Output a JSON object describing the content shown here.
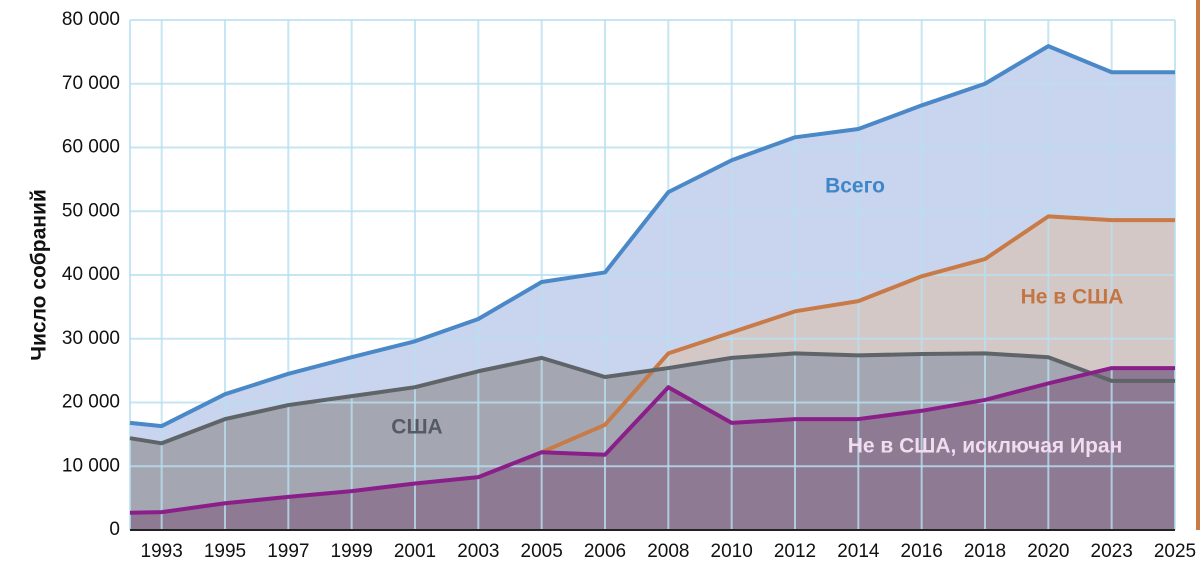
{
  "chart_data": {
    "type": "line",
    "y_label": "Число собраний",
    "categories": [
      null,
      "1993",
      "1995",
      "1997",
      "1999",
      "2001",
      "2003",
      "2005",
      "2006",
      "2008",
      "2010",
      "2012",
      "2014",
      "2016",
      "2018",
      "2020",
      "2023",
      "2025"
    ],
    "series": [
      {
        "name": "Всего",
        "color": "#4a88c7",
        "fill": "#c9d4ee",
        "label_color": "#3f86c9",
        "values": [
          16800,
          16300,
          21300,
          24500,
          27100,
          29600,
          33100,
          38900,
          40400,
          53000,
          58000,
          61600,
          62900,
          66600,
          70000,
          75900,
          71800,
          71800
        ]
      },
      {
        "name": "Не в США",
        "color": "#c87a47",
        "fill": "#d4c8c6",
        "label_color": "#c27643",
        "values": [
          null,
          null,
          null,
          null,
          null,
          null,
          null,
          12200,
          16500,
          27700,
          31000,
          34300,
          35900,
          39800,
          42500,
          49200,
          48600,
          48600
        ]
      },
      {
        "name": "США",
        "color": "#5f6468",
        "fill": "#a4a7b1",
        "label_color": "#555b63",
        "values": [
          14400,
          13600,
          17400,
          19600,
          21000,
          22400,
          24900,
          27000,
          24000,
          25400,
          27000,
          27700,
          27400,
          27600,
          27700,
          27100,
          23400,
          23400
        ]
      },
      {
        "name": "Не в США, исключая Иран",
        "color": "#8a1f8a",
        "fill": "#8e7b93",
        "label_color": "#f2dcef",
        "values": [
          2700,
          2800,
          4200,
          5200,
          6100,
          7300,
          8300,
          12200,
          11800,
          22400,
          16800,
          17400,
          17400,
          18700,
          20400,
          23000,
          25400,
          25400
        ]
      }
    ],
    "ylim": [
      0,
      80000
    ],
    "yticks": [
      0,
      {
        "value": 10000,
        "label": "10 000"
      },
      {
        "value": 20000,
        "label": "20 000"
      },
      {
        "value": 30000,
        "label": "30 000"
      },
      {
        "value": 40000,
        "label": "40 000"
      },
      {
        "value": 50000,
        "label": "50 000"
      },
      {
        "value": 60000,
        "label": "60 000"
      },
      {
        "value": 70000,
        "label": "70 000"
      },
      {
        "value": 80000,
        "label": "80 000"
      }
    ],
    "grid": true,
    "grid_color": "#b9e0f1"
  }
}
